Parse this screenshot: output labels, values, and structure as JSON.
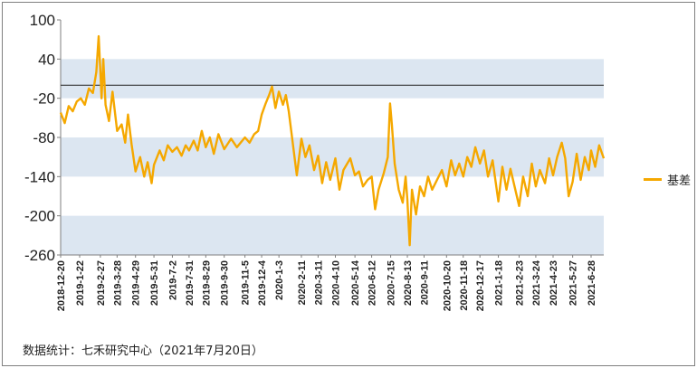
{
  "chart_data": {
    "type": "line",
    "title": "",
    "xlabel": "",
    "ylabel": "",
    "ylim": [
      -260,
      100
    ],
    "yticks": [
      100,
      40,
      -20,
      -80,
      -140,
      -200,
      -260
    ],
    "shaded_bands": [
      [
        -20,
        40
      ],
      [
        -140,
        -80
      ],
      [
        -260,
        -200
      ]
    ],
    "reference_line": 0,
    "xlim": [
      "2018-12-20",
      "2021-07-20"
    ],
    "xticks": [
      "2018-12-20",
      "2019-1-22",
      "2019-2-27",
      "2019-3-28",
      "2019-4-29",
      "2019-5-31",
      "2019-7-2",
      "2019-7-31",
      "2019-8-29",
      "2019-9-30",
      "2019-11-5",
      "2019-12-4",
      "2020-1-3",
      "2020-2-11",
      "2020-3-11",
      "2020-4-10",
      "2020-5-14",
      "2020-6-12",
      "2020-7-15",
      "2020-8-13",
      "2020-9-11",
      "2020-10-20",
      "2020-11-18",
      "2020-12-17",
      "2021-1-18",
      "2021-2-23",
      "2021-3-24",
      "2021-4-23",
      "2021-5-27",
      "2021-6-28"
    ],
    "legend_position": "right",
    "series": [
      {
        "name": "基差",
        "color": "#F5A800",
        "points": [
          [
            "2018-12-20",
            -42
          ],
          [
            "2018-12-27",
            -58
          ],
          [
            "2019-1-3",
            -32
          ],
          [
            "2019-1-10",
            -40
          ],
          [
            "2019-1-17",
            -25
          ],
          [
            "2019-1-24",
            -20
          ],
          [
            "2019-1-31",
            -30
          ],
          [
            "2019-2-7",
            -5
          ],
          [
            "2019-2-14",
            -12
          ],
          [
            "2019-2-20",
            20
          ],
          [
            "2019-2-24",
            75
          ],
          [
            "2019-2-27",
            20
          ],
          [
            "2019-3-1",
            -20
          ],
          [
            "2019-3-4",
            40
          ],
          [
            "2019-3-8",
            -30
          ],
          [
            "2019-3-14",
            -55
          ],
          [
            "2019-3-20",
            -10
          ],
          [
            "2019-3-28",
            -70
          ],
          [
            "2019-4-5",
            -60
          ],
          [
            "2019-4-11",
            -88
          ],
          [
            "2019-4-16",
            -45
          ],
          [
            "2019-4-22",
            -90
          ],
          [
            "2019-4-29",
            -132
          ],
          [
            "2019-5-7",
            -110
          ],
          [
            "2019-5-14",
            -140
          ],
          [
            "2019-5-20",
            -118
          ],
          [
            "2019-5-27",
            -150
          ],
          [
            "2019-5-31",
            -122
          ],
          [
            "2019-6-10",
            -100
          ],
          [
            "2019-6-17",
            -115
          ],
          [
            "2019-6-24",
            -92
          ],
          [
            "2019-7-2",
            -102
          ],
          [
            "2019-7-10",
            -95
          ],
          [
            "2019-7-18",
            -108
          ],
          [
            "2019-7-25",
            -92
          ],
          [
            "2019-7-31",
            -100
          ],
          [
            "2019-8-8",
            -85
          ],
          [
            "2019-8-15",
            -100
          ],
          [
            "2019-8-22",
            -70
          ],
          [
            "2019-8-29",
            -95
          ],
          [
            "2019-9-5",
            -80
          ],
          [
            "2019-9-12",
            -105
          ],
          [
            "2019-9-20",
            -75
          ],
          [
            "2019-9-30",
            -98
          ],
          [
            "2019-10-12",
            -82
          ],
          [
            "2019-10-22",
            -95
          ],
          [
            "2019-11-5",
            -80
          ],
          [
            "2019-11-13",
            -88
          ],
          [
            "2019-11-21",
            -75
          ],
          [
            "2019-11-28",
            -70
          ],
          [
            "2019-12-4",
            -45
          ],
          [
            "2019-12-11",
            -28
          ],
          [
            "2019-12-17",
            -15
          ],
          [
            "2019-12-22",
            -2
          ],
          [
            "2019-12-28",
            -35
          ],
          [
            "2020-1-3",
            -10
          ],
          [
            "2020-1-10",
            -30
          ],
          [
            "2020-1-15",
            -15
          ],
          [
            "2020-1-20",
            -40
          ],
          [
            "2020-2-3",
            -138
          ],
          [
            "2020-2-11",
            -82
          ],
          [
            "2020-2-18",
            -110
          ],
          [
            "2020-2-25",
            -92
          ],
          [
            "2020-3-4",
            -130
          ],
          [
            "2020-3-11",
            -108
          ],
          [
            "2020-3-18",
            -150
          ],
          [
            "2020-3-25",
            -118
          ],
          [
            "2020-4-1",
            -145
          ],
          [
            "2020-4-10",
            -112
          ],
          [
            "2020-4-17",
            -160
          ],
          [
            "2020-4-24",
            -130
          ],
          [
            "2020-5-6",
            -112
          ],
          [
            "2020-5-14",
            -138
          ],
          [
            "2020-5-21",
            -132
          ],
          [
            "2020-5-28",
            -155
          ],
          [
            "2020-6-5",
            -145
          ],
          [
            "2020-6-12",
            -140
          ],
          [
            "2020-6-18",
            -190
          ],
          [
            "2020-6-24",
            -160
          ],
          [
            "2020-7-3",
            -135
          ],
          [
            "2020-7-10",
            -110
          ],
          [
            "2020-7-14",
            -28
          ],
          [
            "2020-7-17",
            -60
          ],
          [
            "2020-7-22",
            -120
          ],
          [
            "2020-7-29",
            -160
          ],
          [
            "2020-8-5",
            -180
          ],
          [
            "2020-8-10",
            -140
          ],
          [
            "2020-8-13",
            -175
          ],
          [
            "2020-8-17",
            -245
          ],
          [
            "2020-8-21",
            -160
          ],
          [
            "2020-8-28",
            -198
          ],
          [
            "2020-9-4",
            -155
          ],
          [
            "2020-9-11",
            -170
          ],
          [
            "2020-9-18",
            -140
          ],
          [
            "2020-9-25",
            -160
          ],
          [
            "2020-10-12",
            -130
          ],
          [
            "2020-10-20",
            -155
          ],
          [
            "2020-10-28",
            -115
          ],
          [
            "2020-11-4",
            -138
          ],
          [
            "2020-11-11",
            -120
          ],
          [
            "2020-11-18",
            -140
          ],
          [
            "2020-11-25",
            -110
          ],
          [
            "2020-12-2",
            -125
          ],
          [
            "2020-12-9",
            -95
          ],
          [
            "2020-12-17",
            -120
          ],
          [
            "2020-12-24",
            -100
          ],
          [
            "2020-12-31",
            -140
          ],
          [
            "2021-1-8",
            -115
          ],
          [
            "2021-1-18",
            -178
          ],
          [
            "2021-1-25",
            -125
          ],
          [
            "2021-2-1",
            -160
          ],
          [
            "2021-2-8",
            -128
          ],
          [
            "2021-2-23",
            -185
          ],
          [
            "2021-3-2",
            -140
          ],
          [
            "2021-3-10",
            -170
          ],
          [
            "2021-3-17",
            -120
          ],
          [
            "2021-3-24",
            -155
          ],
          [
            "2021-3-31",
            -130
          ],
          [
            "2021-4-9",
            -150
          ],
          [
            "2021-4-16",
            -112
          ],
          [
            "2021-4-23",
            -138
          ],
          [
            "2021-4-30",
            -110
          ],
          [
            "2021-5-8",
            -88
          ],
          [
            "2021-5-14",
            -112
          ],
          [
            "2021-5-20",
            -170
          ],
          [
            "2021-5-27",
            -148
          ],
          [
            "2021-6-3",
            -105
          ],
          [
            "2021-6-10",
            -145
          ],
          [
            "2021-6-17",
            -110
          ],
          [
            "2021-6-24",
            -130
          ],
          [
            "2021-6-28",
            -100
          ],
          [
            "2021-7-5",
            -125
          ],
          [
            "2021-7-12",
            -92
          ],
          [
            "2021-7-20",
            -112
          ]
        ]
      }
    ]
  },
  "source_note": "数据统计：七禾研究中心（2021年7月20日）"
}
